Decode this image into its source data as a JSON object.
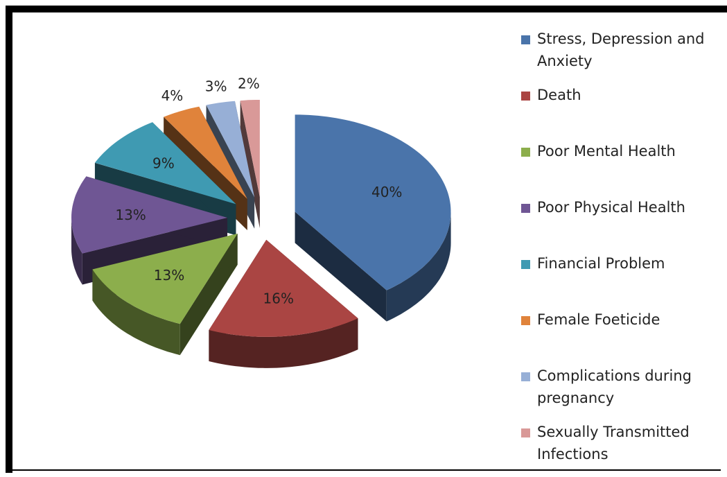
{
  "chart_data": {
    "type": "pie",
    "categories": [
      "Stress, Depression and Anxiety",
      "Death",
      "Poor Mental Health",
      "Poor Physical Health",
      "Financial Problem",
      "Female Foeticide",
      "Complications during pregnancy",
      "Sexually Transmitted Infections"
    ],
    "values": [
      40,
      16,
      13,
      13,
      9,
      4,
      3,
      2
    ],
    "value_labels": [
      "40%",
      "16%",
      "13%",
      "13%",
      "9%",
      "4%",
      "3%",
      "2%"
    ],
    "colors": [
      "#4a74aa",
      "#aa4543",
      "#8cae4c",
      "#6f5694",
      "#3f9ab2",
      "#e0833b",
      "#97afd6",
      "#d99998"
    ],
    "legend": "right"
  }
}
